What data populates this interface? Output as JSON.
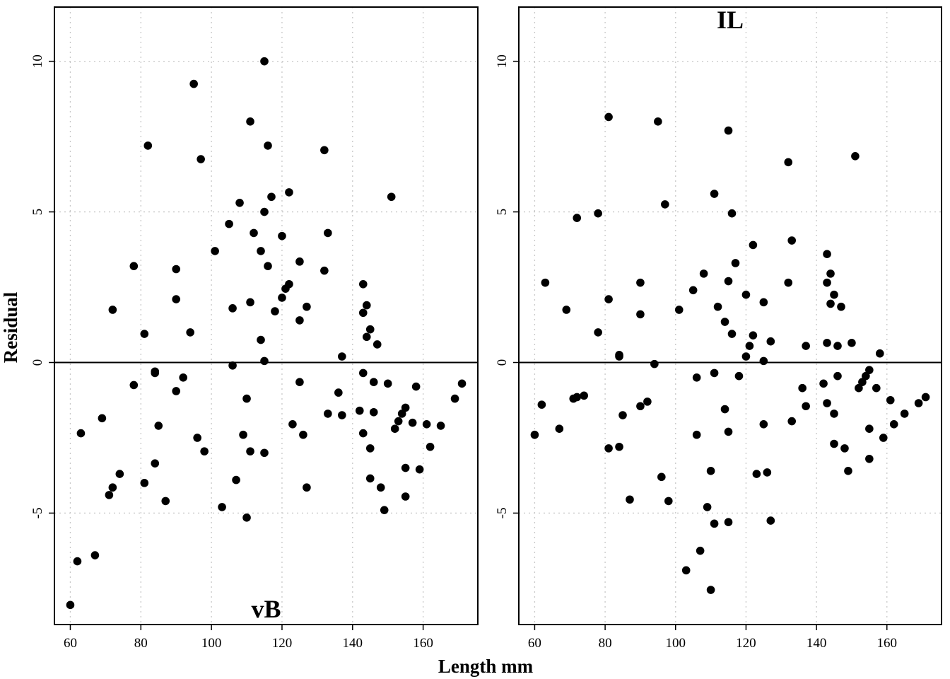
{
  "colors": {
    "points": "#000000",
    "grid": "#c8c8c8",
    "frame": "#000000"
  },
  "chart_data": {
    "type": "scatter",
    "xlabel": "Length mm",
    "ylabel": "Residual",
    "grid": true,
    "reference_line_y": 0,
    "xlim": [
      55.5,
      175.5
    ],
    "ylim": [
      -8.7,
      11.8
    ],
    "x_ticks": [
      60,
      80,
      100,
      120,
      140,
      160
    ],
    "y_ticks": [
      -5,
      0,
      5,
      10
    ],
    "panels": [
      {
        "id": "vB",
        "title": "vB",
        "title_position": "bottom",
        "x_tick_labels": [
          "60",
          "80",
          "100",
          "120",
          "140",
          "160"
        ],
        "y_tick_labels": [
          "-5",
          "0",
          "5",
          "10"
        ],
        "points": [
          [
            60,
            -8.05
          ],
          [
            62,
            -6.6
          ],
          [
            63,
            -2.35
          ],
          [
            67,
            -6.4
          ],
          [
            69,
            -1.85
          ],
          [
            71,
            -4.4
          ],
          [
            72,
            1.75
          ],
          [
            72,
            -4.15
          ],
          [
            74,
            -3.7
          ],
          [
            78,
            3.2
          ],
          [
            78,
            -0.75
          ],
          [
            81,
            0.95
          ],
          [
            81,
            -4.0
          ],
          [
            82,
            7.2
          ],
          [
            84,
            -0.3
          ],
          [
            84,
            -0.35
          ],
          [
            84,
            -3.35
          ],
          [
            85,
            -2.1
          ],
          [
            87,
            -4.6
          ],
          [
            90,
            3.1
          ],
          [
            90,
            2.1
          ],
          [
            90,
            -0.95
          ],
          [
            92,
            -0.5
          ],
          [
            94,
            1.0
          ],
          [
            95,
            9.25
          ],
          [
            96,
            -2.5
          ],
          [
            97,
            6.75
          ],
          [
            98,
            -2.95
          ],
          [
            101,
            3.7
          ],
          [
            103,
            -4.8
          ],
          [
            105,
            4.6
          ],
          [
            106,
            1.8
          ],
          [
            106,
            -0.1
          ],
          [
            107,
            -3.9
          ],
          [
            108,
            5.3
          ],
          [
            109,
            -2.4
          ],
          [
            110,
            -1.2
          ],
          [
            110,
            -5.15
          ],
          [
            111,
            8.0
          ],
          [
            111,
            2.0
          ],
          [
            111,
            -2.95
          ],
          [
            112,
            4.3
          ],
          [
            114,
            3.7
          ],
          [
            114,
            0.75
          ],
          [
            115,
            10.0
          ],
          [
            115,
            5.0
          ],
          [
            115,
            0.05
          ],
          [
            115,
            -3.0
          ],
          [
            116,
            7.2
          ],
          [
            116,
            3.2
          ],
          [
            117,
            5.5
          ],
          [
            118,
            1.7
          ],
          [
            120,
            4.2
          ],
          [
            120,
            2.15
          ],
          [
            121,
            2.45
          ],
          [
            122,
            5.65
          ],
          [
            122,
            2.6
          ],
          [
            123,
            -2.05
          ],
          [
            125,
            3.35
          ],
          [
            125,
            1.4
          ],
          [
            125,
            -0.65
          ],
          [
            126,
            -2.4
          ],
          [
            127,
            1.85
          ],
          [
            127,
            -4.15
          ],
          [
            132,
            7.05
          ],
          [
            132,
            3.05
          ],
          [
            133,
            4.3
          ],
          [
            133,
            -1.7
          ],
          [
            136,
            -1.0
          ],
          [
            137,
            0.2
          ],
          [
            137,
            -1.75
          ],
          [
            142,
            -1.6
          ],
          [
            143,
            2.6
          ],
          [
            143,
            1.65
          ],
          [
            143,
            -0.35
          ],
          [
            143,
            -2.35
          ],
          [
            144,
            1.9
          ],
          [
            144,
            0.85
          ],
          [
            145,
            1.1
          ],
          [
            145,
            -2.85
          ],
          [
            145,
            -3.85
          ],
          [
            146,
            -0.65
          ],
          [
            146,
            -1.65
          ],
          [
            147,
            0.6
          ],
          [
            148,
            -4.15
          ],
          [
            149,
            -4.9
          ],
          [
            150,
            -0.7
          ],
          [
            151,
            5.5
          ],
          [
            152,
            -2.2
          ],
          [
            153,
            -1.95
          ],
          [
            154,
            -1.7
          ],
          [
            155,
            -1.5
          ],
          [
            155,
            -3.5
          ],
          [
            155,
            -4.45
          ],
          [
            157,
            -2.0
          ],
          [
            158,
            -0.8
          ],
          [
            159,
            -3.55
          ],
          [
            161,
            -2.05
          ],
          [
            162,
            -2.8
          ],
          [
            165,
            -2.1
          ],
          [
            169,
            -1.2
          ],
          [
            171,
            -0.7
          ]
        ]
      },
      {
        "id": "IL",
        "title": "IL",
        "title_position": "top",
        "x_tick_labels": [
          "60",
          "80",
          "100",
          "120",
          "140",
          "160"
        ],
        "y_tick_labels": [
          "-5",
          "0",
          "5",
          "10"
        ],
        "points": [
          [
            60,
            -2.4
          ],
          [
            62,
            -1.4
          ],
          [
            63,
            2.65
          ],
          [
            67,
            -2.2
          ],
          [
            69,
            1.75
          ],
          [
            71,
            -1.2
          ],
          [
            72,
            4.8
          ],
          [
            72,
            -1.15
          ],
          [
            74,
            -1.1
          ],
          [
            78,
            4.95
          ],
          [
            78,
            1.0
          ],
          [
            81,
            8.15
          ],
          [
            81,
            2.1
          ],
          [
            81,
            -2.85
          ],
          [
            84,
            0.25
          ],
          [
            84,
            0.2
          ],
          [
            84,
            -2.8
          ],
          [
            85,
            -1.75
          ],
          [
            87,
            -4.55
          ],
          [
            90,
            2.65
          ],
          [
            90,
            1.6
          ],
          [
            90,
            -1.45
          ],
          [
            92,
            -1.3
          ],
          [
            94,
            -0.05
          ],
          [
            95,
            8.0
          ],
          [
            96,
            -3.8
          ],
          [
            97,
            5.25
          ],
          [
            98,
            -4.6
          ],
          [
            101,
            1.75
          ],
          [
            103,
            -6.9
          ],
          [
            105,
            2.4
          ],
          [
            106,
            -0.5
          ],
          [
            106,
            -2.4
          ],
          [
            107,
            -6.25
          ],
          [
            108,
            2.95
          ],
          [
            109,
            -4.8
          ],
          [
            110,
            -3.6
          ],
          [
            110,
            -7.55
          ],
          [
            111,
            5.6
          ],
          [
            111,
            -0.35
          ],
          [
            111,
            -5.35
          ],
          [
            112,
            1.85
          ],
          [
            114,
            1.35
          ],
          [
            114,
            -1.55
          ],
          [
            115,
            7.7
          ],
          [
            115,
            2.7
          ],
          [
            115,
            -2.3
          ],
          [
            115,
            -5.3
          ],
          [
            116,
            4.95
          ],
          [
            116,
            0.95
          ],
          [
            117,
            3.3
          ],
          [
            118,
            -0.45
          ],
          [
            120,
            2.25
          ],
          [
            120,
            0.2
          ],
          [
            121,
            0.55
          ],
          [
            122,
            3.9
          ],
          [
            122,
            0.9
          ],
          [
            123,
            -3.7
          ],
          [
            125,
            2.0
          ],
          [
            125,
            0.05
          ],
          [
            125,
            -2.05
          ],
          [
            126,
            -3.65
          ],
          [
            127,
            0.7
          ],
          [
            127,
            -5.25
          ],
          [
            132,
            6.65
          ],
          [
            132,
            2.65
          ],
          [
            133,
            4.05
          ],
          [
            133,
            -1.95
          ],
          [
            136,
            -0.85
          ],
          [
            137,
            0.55
          ],
          [
            137,
            -1.45
          ],
          [
            142,
            -0.7
          ],
          [
            143,
            3.6
          ],
          [
            143,
            2.65
          ],
          [
            143,
            0.65
          ],
          [
            143,
            -1.35
          ],
          [
            144,
            2.95
          ],
          [
            144,
            1.95
          ],
          [
            145,
            2.25
          ],
          [
            145,
            -1.7
          ],
          [
            145,
            -2.7
          ],
          [
            146,
            0.55
          ],
          [
            146,
            -0.45
          ],
          [
            147,
            1.85
          ],
          [
            148,
            -2.85
          ],
          [
            149,
            -3.6
          ],
          [
            150,
            0.65
          ],
          [
            151,
            6.85
          ],
          [
            152,
            -0.85
          ],
          [
            153,
            -0.65
          ],
          [
            154,
            -0.45
          ],
          [
            155,
            -0.25
          ],
          [
            155,
            -2.2
          ],
          [
            155,
            -3.2
          ],
          [
            157,
            -0.85
          ],
          [
            158,
            0.3
          ],
          [
            159,
            -2.5
          ],
          [
            161,
            -1.25
          ],
          [
            162,
            -2.05
          ],
          [
            165,
            -1.7
          ],
          [
            169,
            -1.35
          ],
          [
            171,
            -1.15
          ]
        ]
      }
    ]
  }
}
